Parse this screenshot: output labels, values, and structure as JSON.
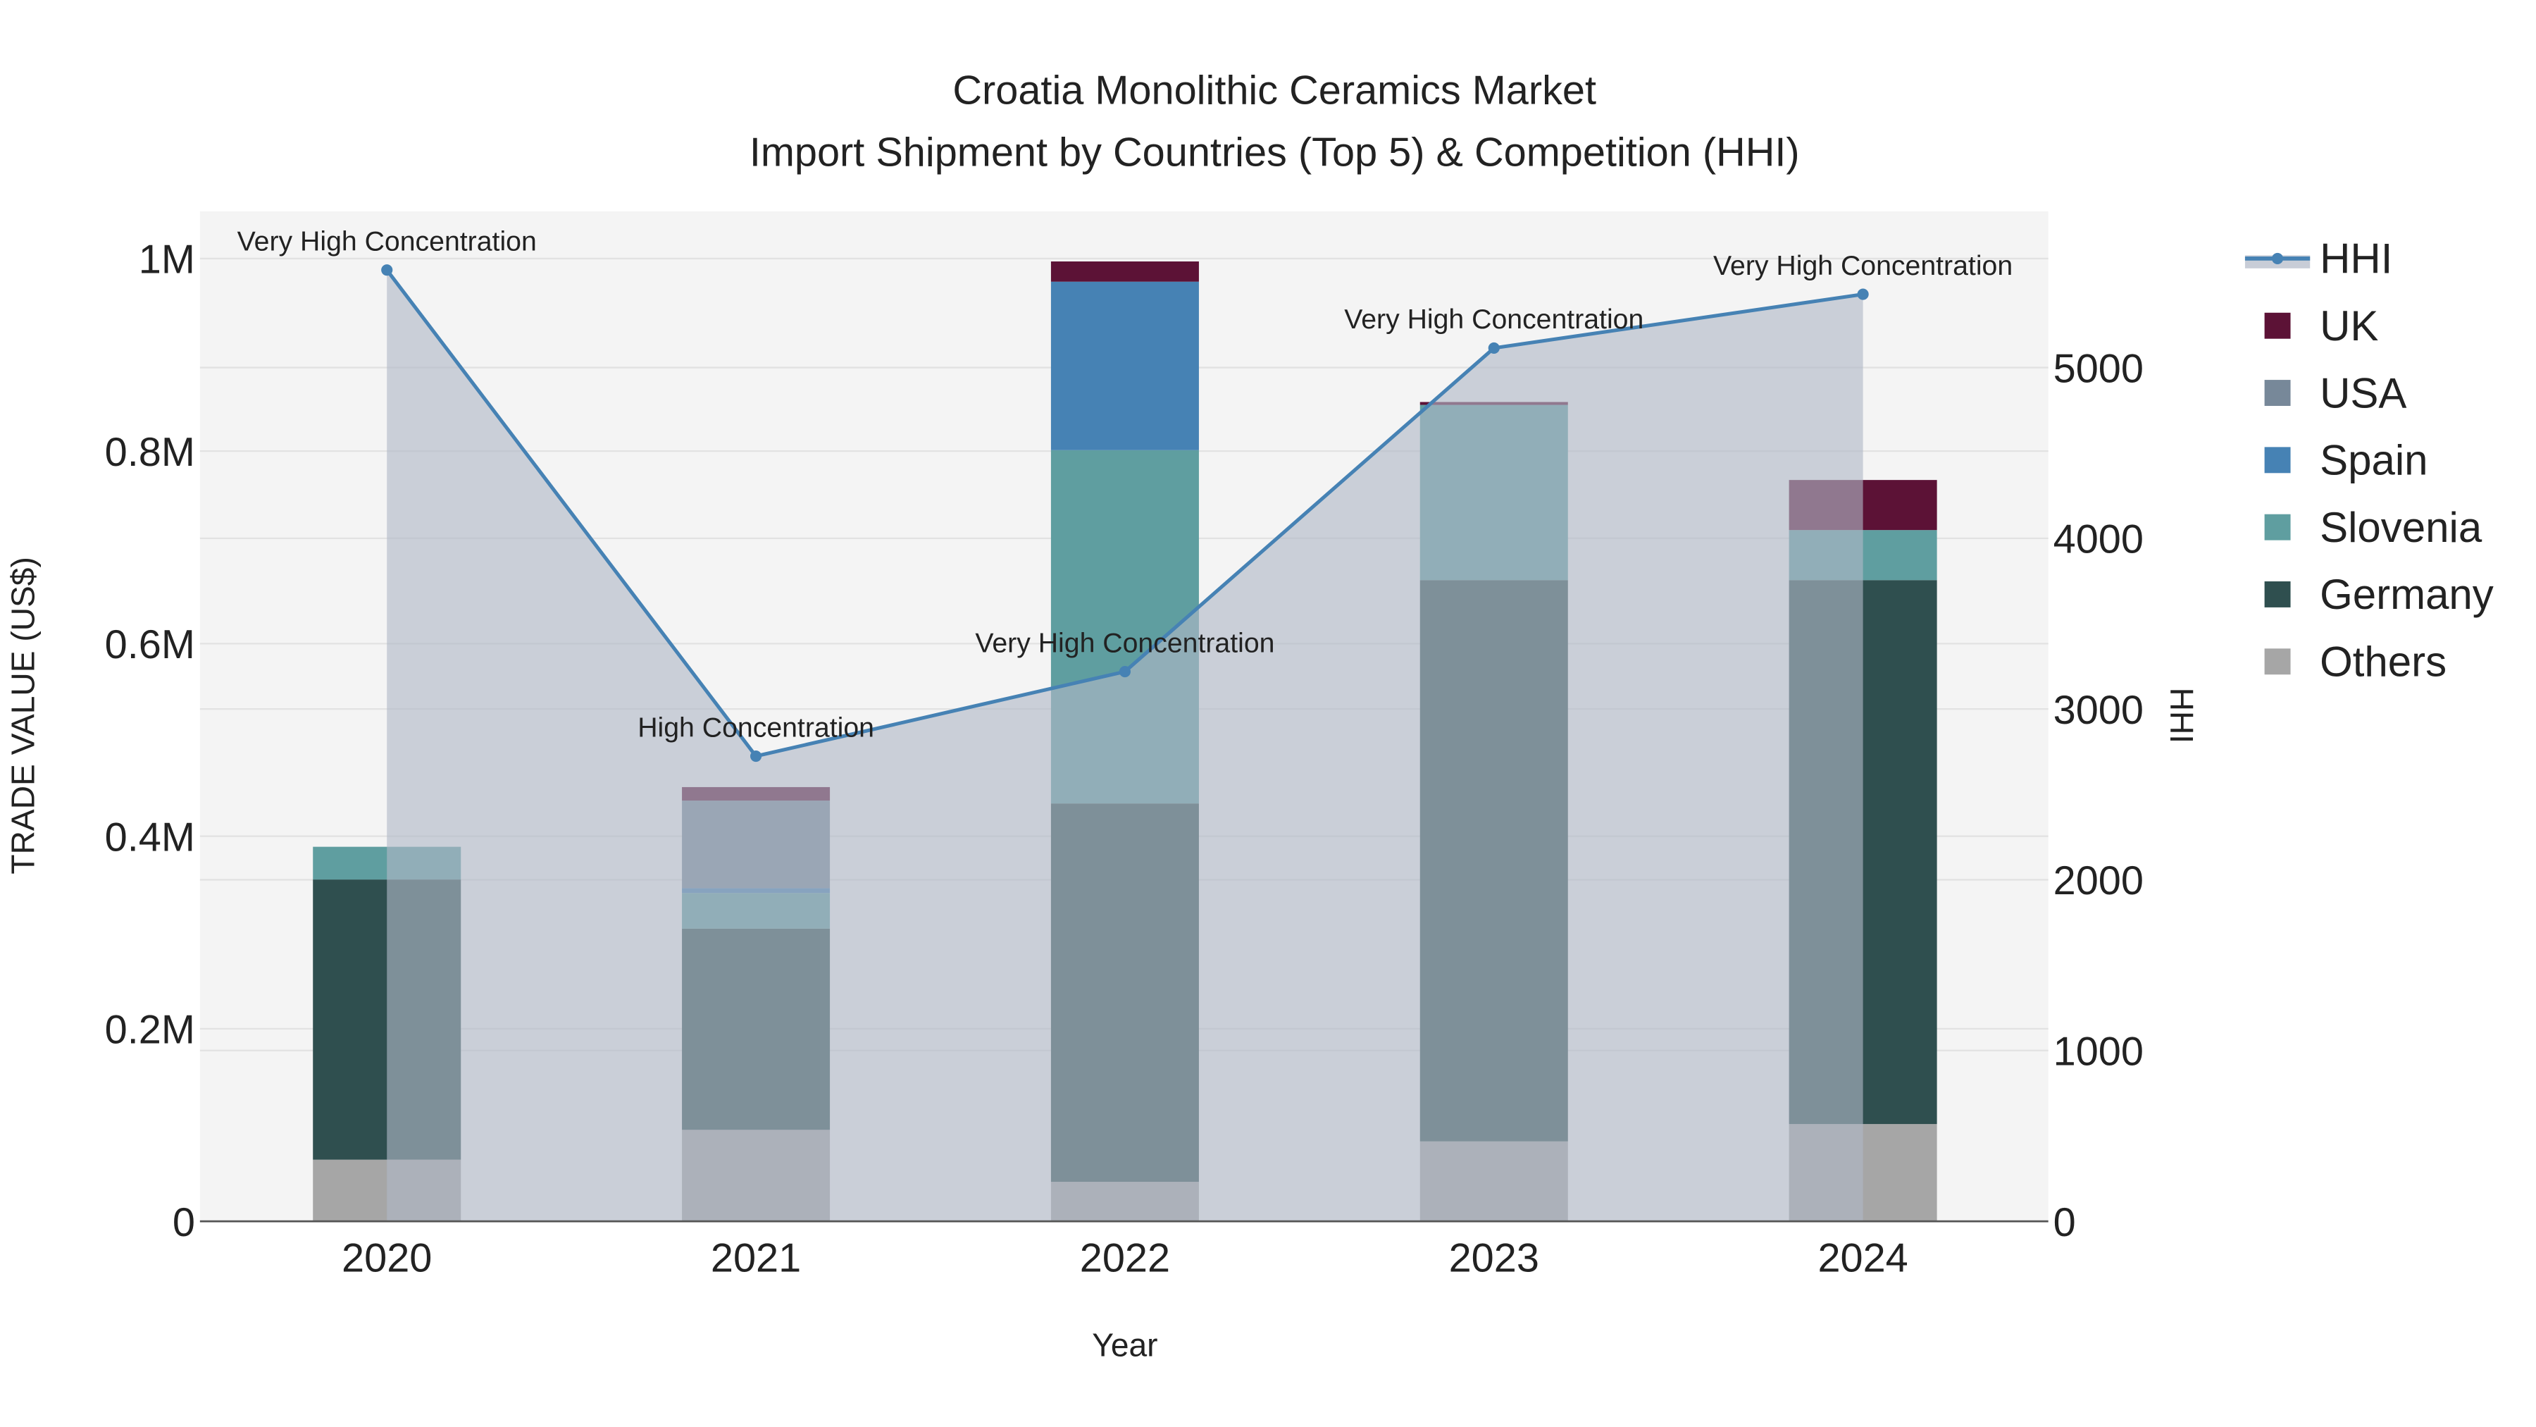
{
  "chart_data": {
    "type": "bar",
    "title": "Croatia Monolithic Ceramics Market",
    "subtitle": "Import Shipment by Countries (Top 5) & Competition (HHI)",
    "xlabel": "Year",
    "ylabel": "TRADE VALUE (US$)",
    "y2label": "HHI",
    "categories": [
      "2020",
      "2021",
      "2022",
      "2023",
      "2024"
    ],
    "ylim": [
      0,
      1050000
    ],
    "y2lim": [
      0,
      5900
    ],
    "yticks": [
      {
        "v": 0,
        "label": "0"
      },
      {
        "v": 200000,
        "label": "0.2M"
      },
      {
        "v": 400000,
        "label": "0.4M"
      },
      {
        "v": 600000,
        "label": "0.6M"
      },
      {
        "v": 800000,
        "label": "0.8M"
      },
      {
        "v": 1000000,
        "label": "1M"
      }
    ],
    "y2ticks": [
      {
        "v": 0,
        "label": "0"
      },
      {
        "v": 1000,
        "label": "1000"
      },
      {
        "v": 2000,
        "label": "2000"
      },
      {
        "v": 3000,
        "label": "3000"
      },
      {
        "v": 4000,
        "label": "4000"
      },
      {
        "v": 5000,
        "label": "5000"
      }
    ],
    "grid": true,
    "legend_position": "right",
    "series": [
      {
        "name": "Others",
        "color": "#a6a6a6",
        "values": [
          64000,
          95000,
          41000,
          83000,
          101000
        ]
      },
      {
        "name": "Germany",
        "color": "#2f4f4f",
        "values": [
          291000,
          209000,
          393000,
          583000,
          565000
        ]
      },
      {
        "name": "Slovenia",
        "color": "#5f9ea0",
        "values": [
          34000,
          37000,
          367000,
          182000,
          52000
        ]
      },
      {
        "name": "Spain",
        "color": "#4682b4",
        "values": [
          0,
          5000,
          175000,
          0,
          0
        ]
      },
      {
        "name": "USA",
        "color": "#778899",
        "values": [
          0,
          91000,
          0,
          0,
          0
        ]
      },
      {
        "name": "UK",
        "color": "#5c1236",
        "values": [
          0,
          14000,
          21000,
          3000,
          52000
        ]
      }
    ],
    "hhi": {
      "name": "HHI",
      "color": "#4682b4",
      "values": [
        5571,
        2724,
        3219,
        5114,
        5429
      ],
      "annotations": [
        "Very High Concentration",
        "High Concentration",
        "Very High Concentration",
        "Very High Concentration",
        "Very High Concentration"
      ]
    },
    "legend_order": [
      "HHI",
      "UK",
      "USA",
      "Spain",
      "Slovenia",
      "Germany",
      "Others"
    ]
  }
}
